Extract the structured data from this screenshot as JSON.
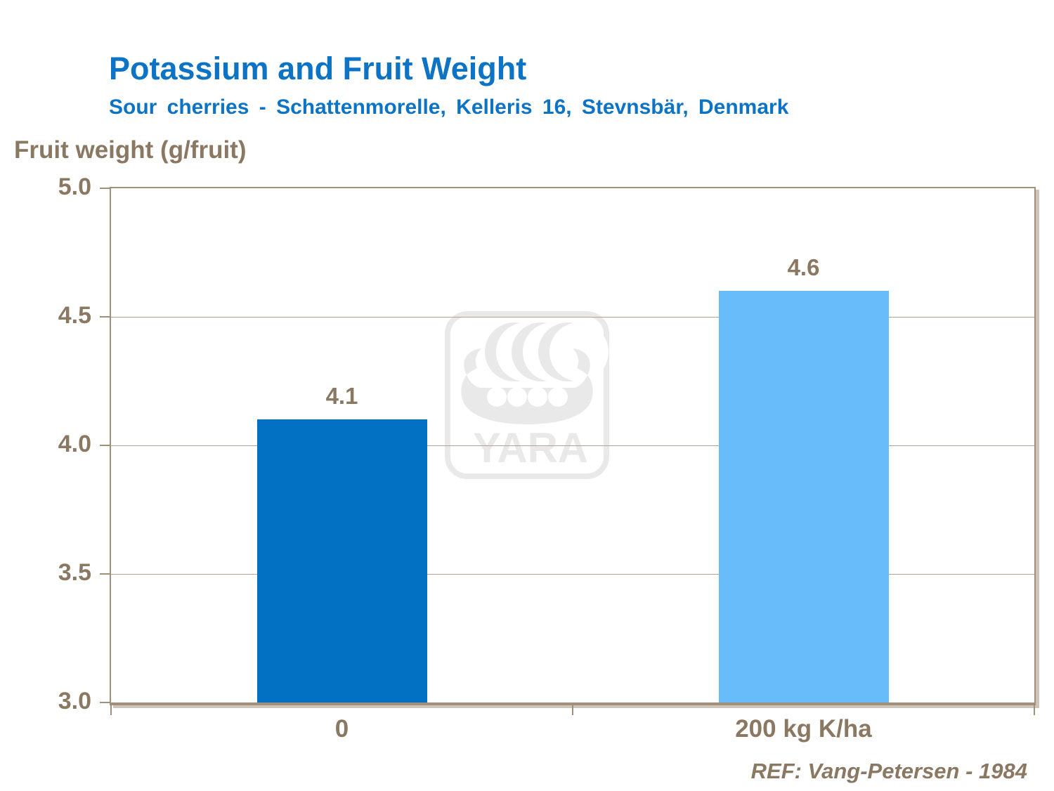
{
  "header": {
    "title": "Potassium and Fruit Weight",
    "subtitle": "Sour cherries - Schattenmorelle, Kelleris 16, Stevnsbär, Denmark"
  },
  "chart_data": {
    "type": "bar",
    "title": "Potassium and Fruit Weight",
    "subtitle": "Sour cherries - Schattenmorelle, Kelleris 16, Stevnsbär, Denmark",
    "ylabel": "Fruit weight (g/fruit)",
    "xlabel": "",
    "categories": [
      "0",
      "200 kg K/ha"
    ],
    "values": [
      4.1,
      4.6
    ],
    "data_labels": [
      "4.1",
      "4.6"
    ],
    "bar_colors": [
      "#0271c3",
      "#68bcfa"
    ],
    "ylim": [
      3.0,
      5.0
    ],
    "yticks": [
      3.0,
      3.5,
      4.0,
      4.5,
      5.0
    ],
    "ytick_labels": [
      "3.0",
      "3.5",
      "4.0",
      "4.5",
      "5.0"
    ],
    "grid": true,
    "legend": false
  },
  "footer": {
    "reference": "REF: Vang-Petersen - 1984"
  },
  "watermark": {
    "name": "yara-logo",
    "text": "YARA",
    "color": "#e9e9e9"
  },
  "colors": {
    "title_blue": "#0d73c5",
    "text_brown": "#8a7862",
    "gridline": "#b3a391",
    "axis": "#a09079",
    "axis_shadow": "#cdc5ba",
    "bar_dark": "#0271c3",
    "bar_light": "#68bcfa",
    "watermark_gray": "#e9e9e9"
  }
}
